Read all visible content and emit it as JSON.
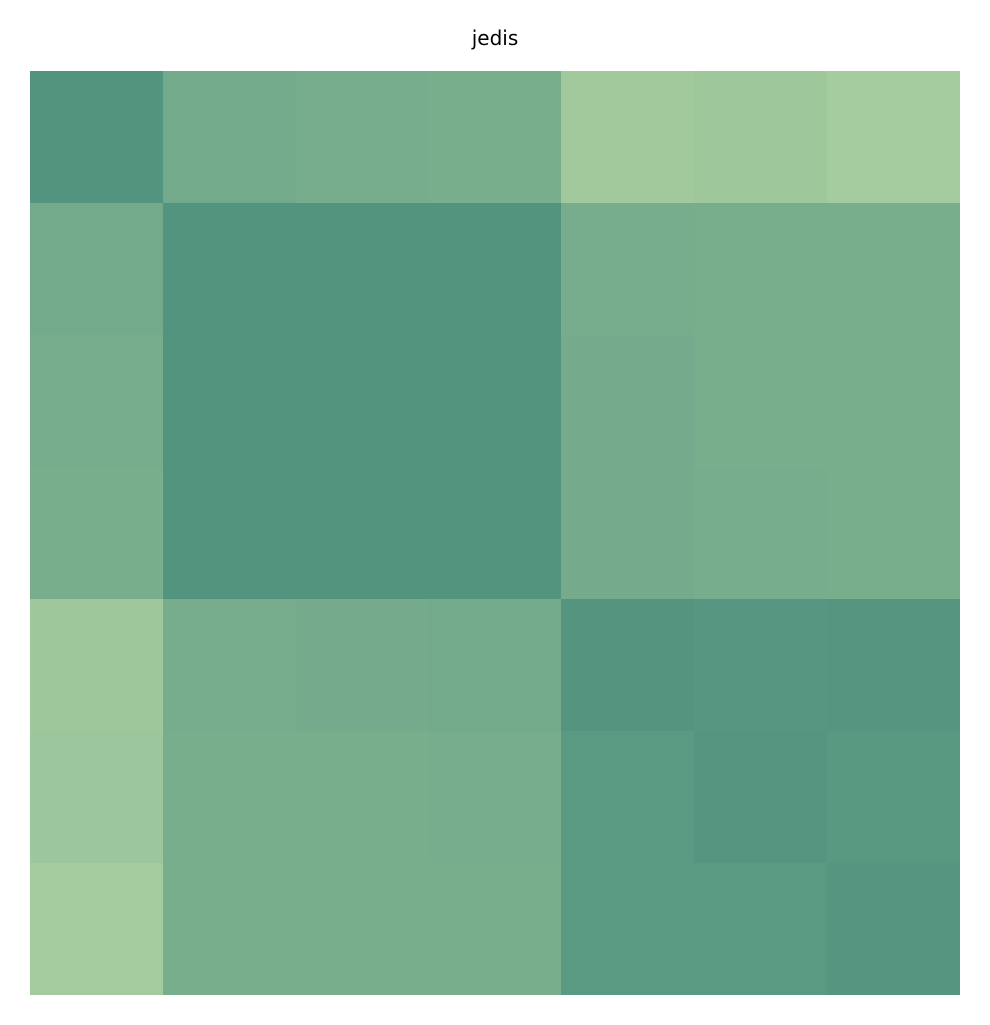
{
  "chart_data": {
    "type": "heatmap",
    "title": "jedis",
    "rows": 7,
    "cols": 7,
    "color_scale": [
      "#a8ce9f",
      "#53947f"
    ],
    "values": [
      [
        1.0,
        0.62,
        0.58,
        0.55,
        0.08,
        0.12,
        0.04
      ],
      [
        0.62,
        1.0,
        1.0,
        1.0,
        0.58,
        0.55,
        0.55
      ],
      [
        0.58,
        1.0,
        1.0,
        1.0,
        0.6,
        0.55,
        0.55
      ],
      [
        0.55,
        1.0,
        1.0,
        1.0,
        0.6,
        0.58,
        0.55
      ],
      [
        0.12,
        0.58,
        0.6,
        0.62,
        0.98,
        0.95,
        0.97
      ],
      [
        0.14,
        0.55,
        0.55,
        0.58,
        0.92,
        0.97,
        0.93
      ],
      [
        0.06,
        0.55,
        0.55,
        0.55,
        0.92,
        0.92,
        0.97
      ]
    ]
  }
}
